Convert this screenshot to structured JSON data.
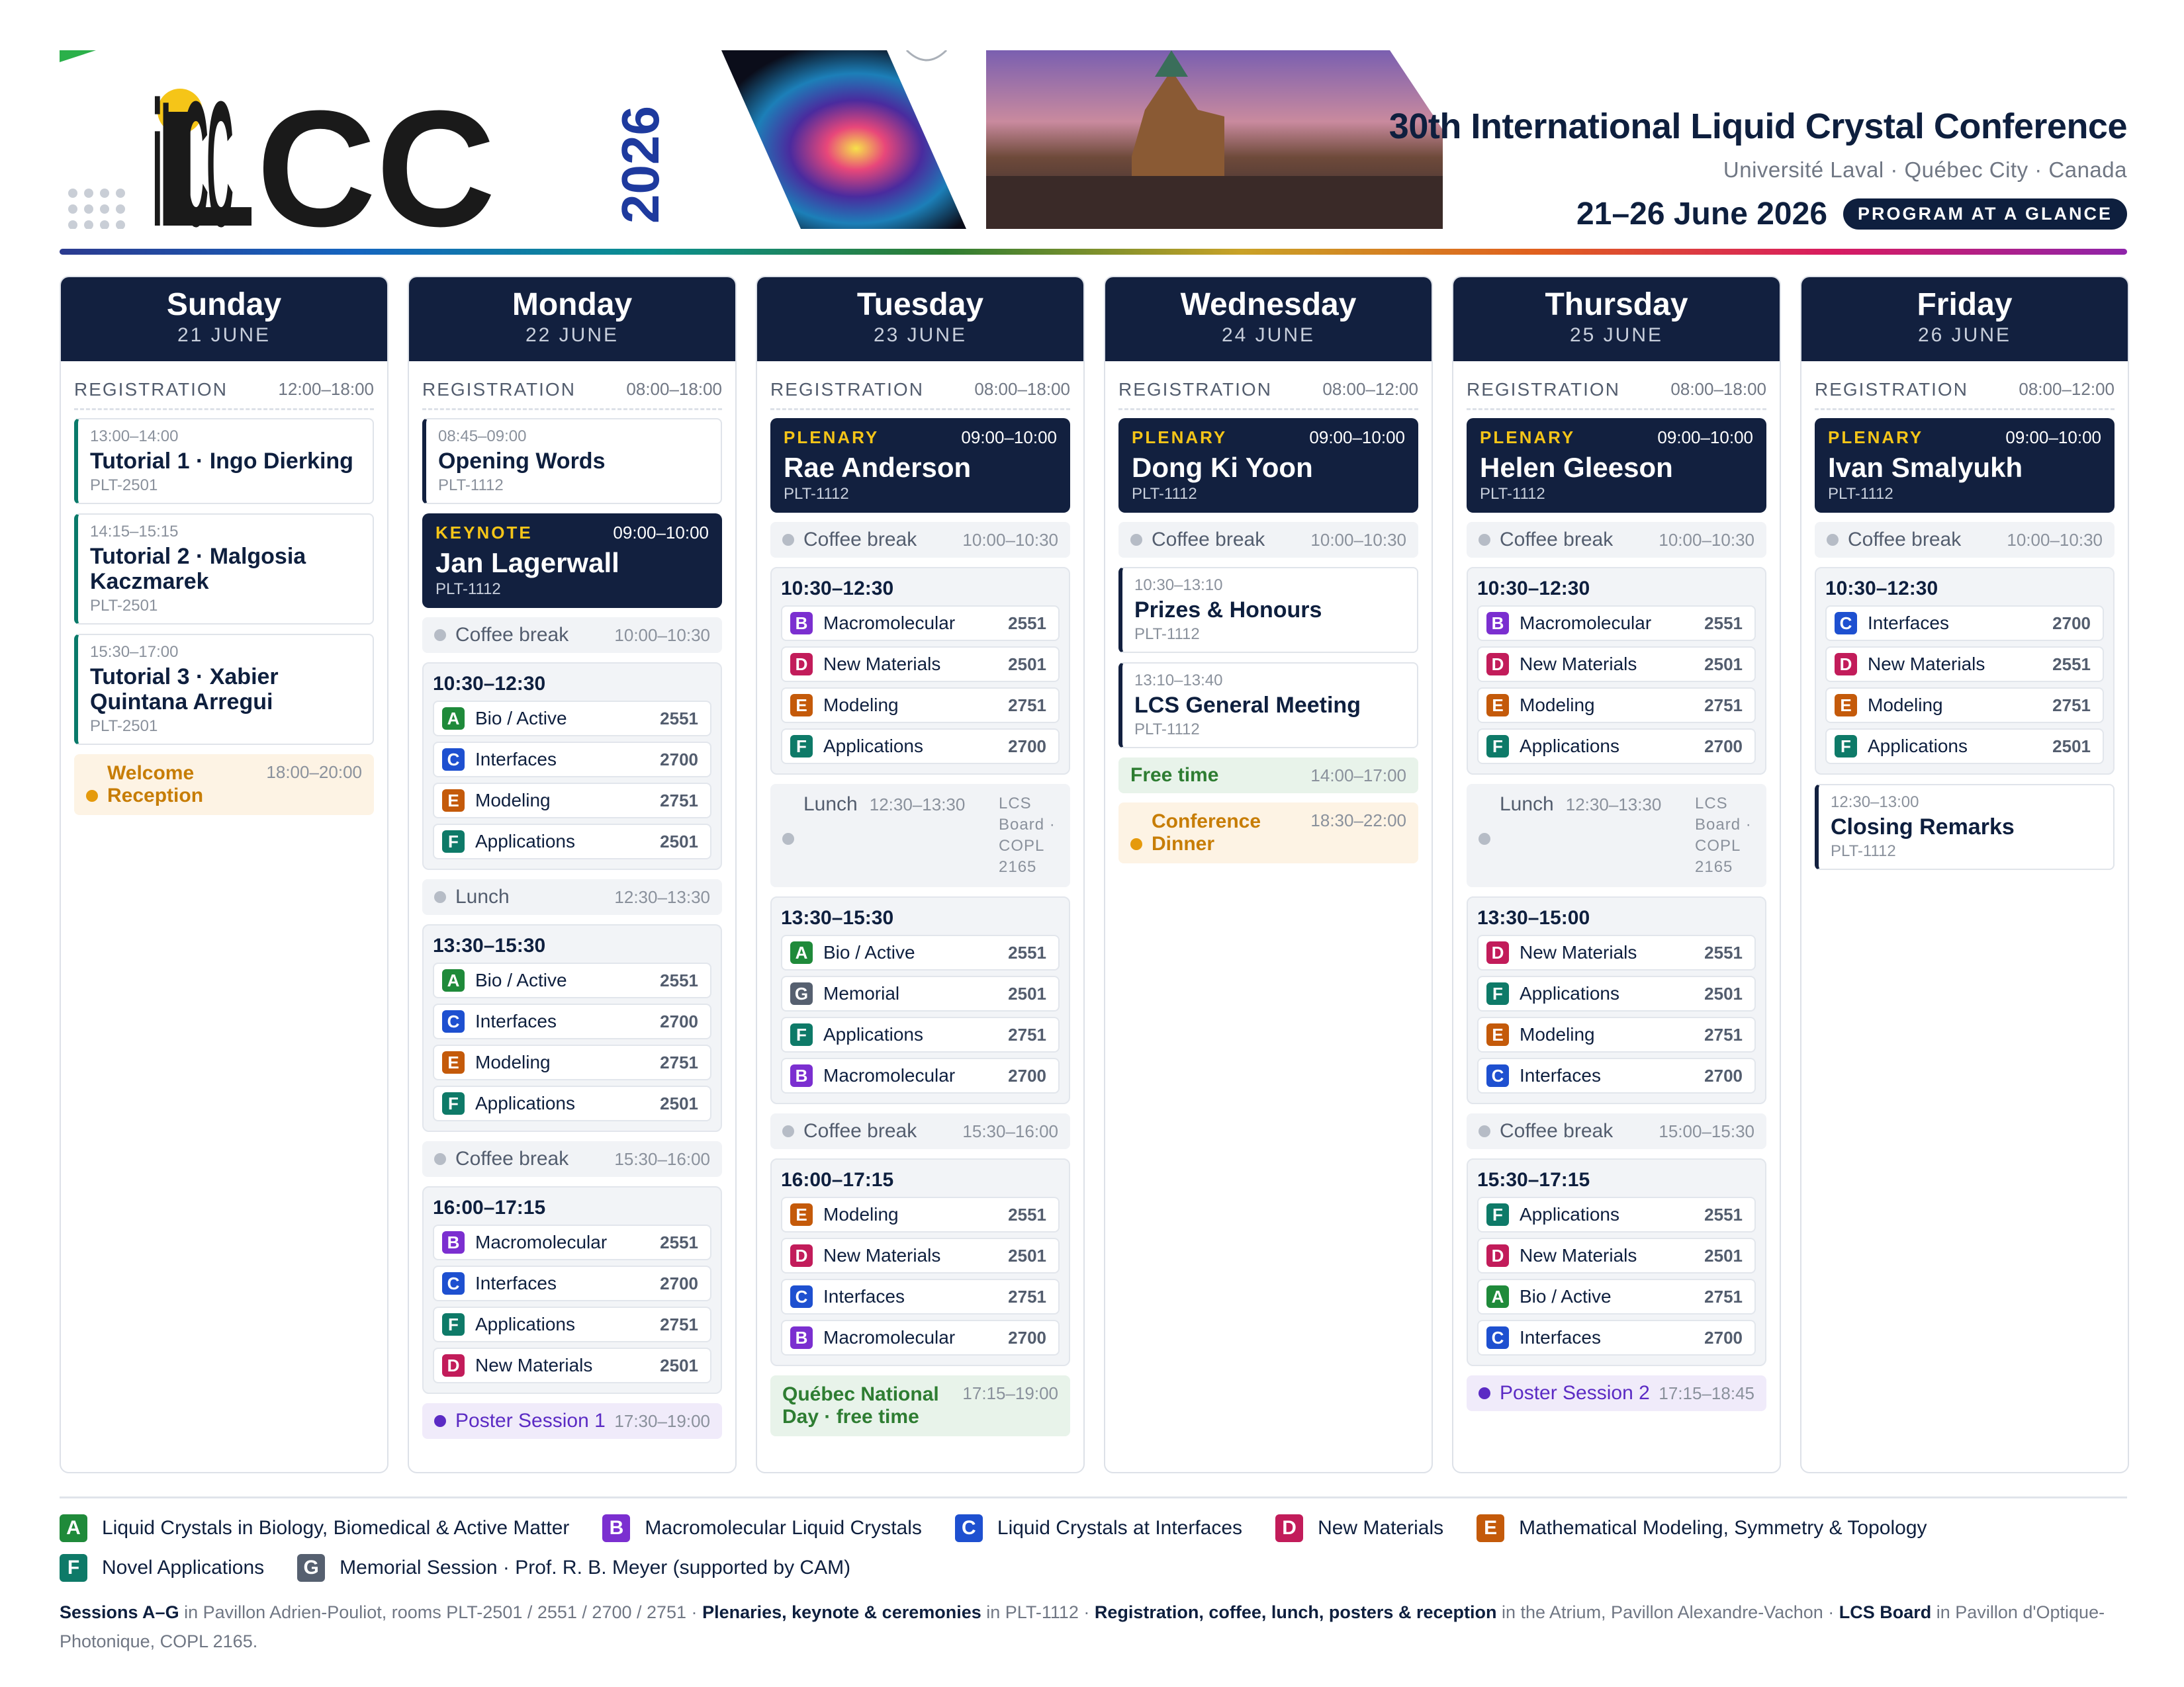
{
  "header": {
    "logo_text": "iLCC",
    "logo_year": "2026",
    "conference_title": "30th International Liquid Crystal Conference",
    "venue": "Université Laval · Québec City · Canada",
    "dates": "21–26 June 2026",
    "badge": "PROGRAM AT A GLANCE"
  },
  "colors": {
    "navy": "#12203f",
    "A": "#1f8a3a",
    "B": "#7b2fd0",
    "C": "#1e50d0",
    "D": "#c21c5a",
    "E": "#c45a0a",
    "F": "#0e7a68",
    "G": "#566070"
  },
  "days": [
    {
      "name": "Sunday",
      "date": "21 JUNE",
      "reg_label": "REGISTRATION",
      "reg_time": "12:00–18:00"
    },
    {
      "name": "Monday",
      "date": "22 JUNE",
      "reg_label": "REGISTRATION",
      "reg_time": "08:00–18:00"
    },
    {
      "name": "Tuesday",
      "date": "23 JUNE",
      "reg_label": "REGISTRATION",
      "reg_time": "08:00–18:00"
    },
    {
      "name": "Wednesday",
      "date": "24 JUNE",
      "reg_label": "REGISTRATION",
      "reg_time": "08:00–12:00"
    },
    {
      "name": "Thursday",
      "date": "25 JUNE",
      "reg_label": "REGISTRATION",
      "reg_time": "08:00–18:00"
    },
    {
      "name": "Friday",
      "date": "26 JUNE",
      "reg_label": "REGISTRATION",
      "reg_time": "08:00–12:00"
    }
  ],
  "sun": {
    "t1": {
      "time": "13:00–14:00",
      "name": "Tutorial 1 · Ingo Dierking",
      "room": "PLT-2501"
    },
    "t2": {
      "time": "14:15–15:15",
      "name": "Tutorial 2 · Malgosia Kaczmarek",
      "room": "PLT-2501"
    },
    "t3": {
      "time": "15:30–17:00",
      "name": "Tutorial 3 · Xabier Quintana Arregui",
      "room": "PLT-2501"
    },
    "welcome": {
      "label": "Welcome Reception",
      "time": "18:00–20:00"
    }
  },
  "mon": {
    "opening": {
      "time": "08:45–09:00",
      "name": "Opening Words",
      "room": "PLT-1112"
    },
    "keynote": {
      "kind": "KEYNOTE",
      "time": "09:00–10:00",
      "name": "Jan Lagerwall",
      "room": "PLT-1112"
    },
    "coffee1": {
      "label": "Coffee break",
      "time": "10:00–10:30"
    },
    "s1": {
      "title": "10:30–12:30",
      "rows": [
        {
          "l": "A",
          "n": "Bio / Active",
          "r": "2551"
        },
        {
          "l": "C",
          "n": "Interfaces",
          "r": "2700"
        },
        {
          "l": "E",
          "n": "Modeling",
          "r": "2751"
        },
        {
          "l": "F",
          "n": "Applications",
          "r": "2501"
        }
      ]
    },
    "lunch": {
      "label": "Lunch",
      "time": "12:30–13:30"
    },
    "s2": {
      "title": "13:30–15:30",
      "rows": [
        {
          "l": "A",
          "n": "Bio / Active",
          "r": "2551"
        },
        {
          "l": "C",
          "n": "Interfaces",
          "r": "2700"
        },
        {
          "l": "E",
          "n": "Modeling",
          "r": "2751"
        },
        {
          "l": "F",
          "n": "Applications",
          "r": "2501"
        }
      ]
    },
    "coffee2": {
      "label": "Coffee break",
      "time": "15:30–16:00"
    },
    "s3": {
      "title": "16:00–17:15",
      "rows": [
        {
          "l": "B",
          "n": "Macromolecular",
          "r": "2551"
        },
        {
          "l": "C",
          "n": "Interfaces",
          "r": "2700"
        },
        {
          "l": "F",
          "n": "Applications",
          "r": "2751"
        },
        {
          "l": "D",
          "n": "New Materials",
          "r": "2501"
        }
      ]
    },
    "poster": {
      "label": "Poster Session 1",
      "time": "17:30–19:00"
    }
  },
  "tue": {
    "plenary": {
      "kind": "PLENARY",
      "time": "09:00–10:00",
      "name": "Rae Anderson",
      "room": "PLT-1112"
    },
    "coffee1": {
      "label": "Coffee break",
      "time": "10:00–10:30"
    },
    "s1": {
      "title": "10:30–12:30",
      "rows": [
        {
          "l": "B",
          "n": "Macromolecular",
          "r": "2551"
        },
        {
          "l": "D",
          "n": "New Materials",
          "r": "2501"
        },
        {
          "l": "E",
          "n": "Modeling",
          "r": "2751"
        },
        {
          "l": "F",
          "n": "Applications",
          "r": "2700"
        }
      ]
    },
    "lunch": {
      "label": "Lunch",
      "time": "12:30–13:30",
      "room": "LCS Board · COPL 2165"
    },
    "s2": {
      "title": "13:30–15:30",
      "rows": [
        {
          "l": "A",
          "n": "Bio / Active",
          "r": "2551"
        },
        {
          "l": "G",
          "n": "Memorial",
          "r": "2501"
        },
        {
          "l": "F",
          "n": "Applications",
          "r": "2751"
        },
        {
          "l": "B",
          "n": "Macromolecular",
          "r": "2700"
        }
      ]
    },
    "coffee2": {
      "label": "Coffee break",
      "time": "15:30–16:00"
    },
    "s3": {
      "title": "16:00–17:15",
      "rows": [
        {
          "l": "E",
          "n": "Modeling",
          "r": "2551"
        },
        {
          "l": "D",
          "n": "New Materials",
          "r": "2501"
        },
        {
          "l": "C",
          "n": "Interfaces",
          "r": "2751"
        },
        {
          "l": "B",
          "n": "Macromolecular",
          "r": "2700"
        }
      ]
    },
    "nationalday": {
      "label": "Québec National Day · free time",
      "time": "17:15–19:00"
    }
  },
  "wed": {
    "plenary": {
      "kind": "PLENARY",
      "time": "09:00–10:00",
      "name": "Dong Ki Yoon",
      "room": "PLT-1112"
    },
    "coffee1": {
      "label": "Coffee break",
      "time": "10:00–10:30"
    },
    "prizes": {
      "time": "10:30–13:10",
      "name": "Prizes & Honours",
      "room": "PLT-1112"
    },
    "general": {
      "time": "13:10–13:40",
      "name": "LCS General Meeting",
      "room": "PLT-1112"
    },
    "free": {
      "label": "Free time",
      "time": "14:00–17:00"
    },
    "dinner": {
      "label": "Conference Dinner",
      "time": "18:30–22:00"
    }
  },
  "thu": {
    "plenary": {
      "kind": "PLENARY",
      "time": "09:00–10:00",
      "name": "Helen Gleeson",
      "room": "PLT-1112"
    },
    "coffee1": {
      "label": "Coffee break",
      "time": "10:00–10:30"
    },
    "s1": {
      "title": "10:30–12:30",
      "rows": [
        {
          "l": "B",
          "n": "Macromolecular",
          "r": "2551"
        },
        {
          "l": "D",
          "n": "New Materials",
          "r": "2501"
        },
        {
          "l": "E",
          "n": "Modeling",
          "r": "2751"
        },
        {
          "l": "F",
          "n": "Applications",
          "r": "2700"
        }
      ]
    },
    "lunch": {
      "label": "Lunch",
      "time": "12:30–13:30",
      "room": "LCS Board · COPL 2165"
    },
    "s2": {
      "title": "13:30–15:00",
      "rows": [
        {
          "l": "D",
          "n": "New Materials",
          "r": "2551"
        },
        {
          "l": "F",
          "n": "Applications",
          "r": "2501"
        },
        {
          "l": "E",
          "n": "Modeling",
          "r": "2751"
        },
        {
          "l": "C",
          "n": "Interfaces",
          "r": "2700"
        }
      ]
    },
    "coffee2": {
      "label": "Coffee break",
      "time": "15:00–15:30"
    },
    "s3": {
      "title": "15:30–17:15",
      "rows": [
        {
          "l": "F",
          "n": "Applications",
          "r": "2551"
        },
        {
          "l": "D",
          "n": "New Materials",
          "r": "2501"
        },
        {
          "l": "A",
          "n": "Bio / Active",
          "r": "2751"
        },
        {
          "l": "C",
          "n": "Interfaces",
          "r": "2700"
        }
      ]
    },
    "poster": {
      "label": "Poster Session 2",
      "time": "17:15–18:45"
    }
  },
  "fri": {
    "plenary": {
      "kind": "PLENARY",
      "time": "09:00–10:00",
      "name": "Ivan Smalyukh",
      "room": "PLT-1112"
    },
    "coffee1": {
      "label": "Coffee break",
      "time": "10:00–10:30"
    },
    "s1": {
      "title": "10:30–12:30",
      "rows": [
        {
          "l": "C",
          "n": "Interfaces",
          "r": "2700"
        },
        {
          "l": "D",
          "n": "New Materials",
          "r": "2551"
        },
        {
          "l": "E",
          "n": "Modeling",
          "r": "2751"
        },
        {
          "l": "F",
          "n": "Applications",
          "r": "2501"
        }
      ]
    },
    "closing": {
      "time": "12:30–13:00",
      "name": "Closing Remarks",
      "room": "PLT-1112"
    }
  },
  "legend": [
    {
      "l": "A",
      "text": "Liquid Crystals in Biology, Biomedical & Active Matter"
    },
    {
      "l": "B",
      "text": "Macromolecular Liquid Crystals"
    },
    {
      "l": "C",
      "text": "Liquid Crystals at Interfaces"
    },
    {
      "l": "D",
      "text": "New Materials"
    },
    {
      "l": "E",
      "text": "Mathematical Modeling, Symmetry & Topology"
    },
    {
      "l": "F",
      "text": "Novel Applications"
    },
    {
      "l": "G",
      "text": "Memorial Session · Prof. R. B. Meyer (supported by CAM)"
    }
  ],
  "footer": {
    "b1": "Sessions A–G",
    "t1": " in Pavillon Adrien-Pouliot, rooms PLT-2501 / 2551 / 2700 / 2751 · ",
    "b2": "Plenaries, keynote & ceremonies",
    "t2": " in PLT-1112 · ",
    "b3": "Registration, coffee, lunch, posters & reception",
    "t3": " in the Atrium, Pavillon Alexandre-Vachon · ",
    "b4": "LCS Board",
    "t4": " in Pavillon d'Optique-Photonique, COPL 2165."
  }
}
